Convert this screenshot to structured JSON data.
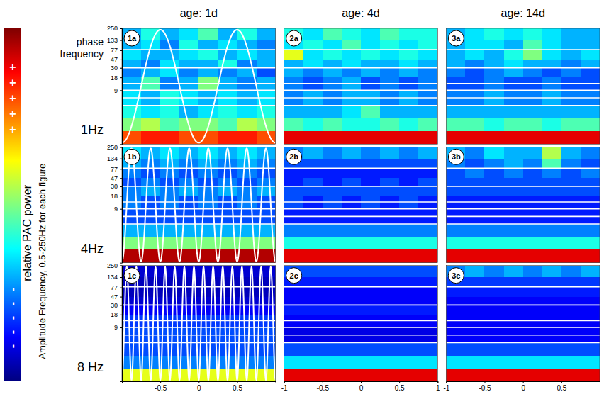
{
  "chart_data": {
    "type": "heatmap",
    "columns": [
      "age: 1d",
      "age: 4d",
      "age: 14d"
    ],
    "rows": [
      "1Hz",
      "4Hz",
      "8 Hz"
    ],
    "phase_frequencies": [
      1,
      4,
      8
    ],
    "phase_label": "phase frequency",
    "y_label": "Amplitude Frequency, 0.5-250Hz for each figure",
    "log": "y",
    "x_edges": [
      -1,
      -0.75,
      -0.5,
      -0.25,
      0,
      0.25,
      0.5,
      0.75,
      1
    ],
    "y_edges": [
      0.5,
      1,
      2,
      4,
      9,
      18,
      30,
      47,
      77,
      133,
      250
    ],
    "band_lines": [
      80,
      30,
      13,
      9,
      6,
      4
    ],
    "colorbar": {
      "label": "relative PAC power",
      "range": [
        0,
        1
      ],
      "colors": [
        "#00007f",
        "#0000ff",
        "#0080ff",
        "#00ffff",
        "#80ff80",
        "#ffff00",
        "#ff8000",
        "#ff0000",
        "#7f0000"
      ],
      "high_marks": [
        "+",
        "+",
        "+",
        "+",
        "+"
      ],
      "low_marks": [
        "-",
        "-",
        "-",
        "-",
        "-"
      ]
    },
    "panels": [
      {
        "title": "1a",
        "xlim": [
          -1,
          1
        ],
        "ylim": [
          0.5,
          250
        ],
        "yticks": [
          250,
          133,
          77,
          47,
          30,
          18,
          9
        ],
        "tick_labels": "y",
        "cells": [
          [
            0.8,
            0.85,
            0.85,
            0.8,
            0.8,
            0.85,
            0.85,
            0.8
          ],
          [
            0.5,
            0.55,
            0.45,
            0.5,
            0.5,
            0.45,
            0.55,
            0.5
          ],
          [
            0.4,
            0.35,
            0.4,
            0.3,
            0.35,
            0.4,
            0.35,
            0.4
          ],
          [
            0.35,
            0.3,
            0.4,
            0.35,
            0.3,
            0.35,
            0.3,
            0.35
          ],
          [
            0.3,
            0.45,
            0.25,
            0.3,
            0.5,
            0.3,
            0.25,
            0.3
          ],
          [
            0.25,
            0.3,
            0.35,
            0.25,
            0.3,
            0.25,
            0.3,
            0.2
          ],
          [
            0.3,
            0.25,
            0.35,
            0.3,
            0.3,
            0.4,
            0.25,
            0.3
          ],
          [
            0.35,
            0.3,
            0.3,
            0.35,
            0.4,
            0.3,
            0.35,
            0.3
          ],
          [
            0.3,
            0.35,
            0.25,
            0.4,
            0.3,
            0.35,
            0.3,
            0.25
          ],
          [
            0.3,
            0.4,
            0.3,
            0.35,
            0.45,
            0.3,
            0.4,
            0.3
          ]
        ]
      },
      {
        "title": "2a",
        "xlim": [
          -1,
          1
        ],
        "ylim": [
          0.5,
          250
        ],
        "tick_labels": false,
        "cells": [
          [
            0.9,
            0.9,
            0.9,
            0.9,
            0.9,
            0.9,
            0.9,
            0.9
          ],
          [
            0.45,
            0.4,
            0.45,
            0.4,
            0.4,
            0.45,
            0.4,
            0.45
          ],
          [
            0.3,
            0.3,
            0.3,
            0.35,
            0.45,
            0.3,
            0.3,
            0.3
          ],
          [
            0.25,
            0.3,
            0.25,
            0.3,
            0.3,
            0.25,
            0.3,
            0.25
          ],
          [
            0.25,
            0.2,
            0.25,
            0.3,
            0.2,
            0.25,
            0.2,
            0.25
          ],
          [
            0.3,
            0.25,
            0.3,
            0.25,
            0.3,
            0.25,
            0.3,
            0.25
          ],
          [
            0.3,
            0.35,
            0.3,
            0.35,
            0.3,
            0.3,
            0.35,
            0.3
          ],
          [
            0.6,
            0.35,
            0.4,
            0.35,
            0.4,
            0.35,
            0.4,
            0.35
          ],
          [
            0.35,
            0.4,
            0.35,
            0.45,
            0.35,
            0.4,
            0.35,
            0.4
          ],
          [
            0.4,
            0.35,
            0.45,
            0.4,
            0.35,
            0.45,
            0.4,
            0.4
          ]
        ]
      },
      {
        "title": "3a",
        "xlim": [
          -1,
          1
        ],
        "ylim": [
          0.5,
          250
        ],
        "tick_labels": false,
        "cells": [
          [
            0.9,
            0.9,
            0.9,
            0.9,
            0.9,
            0.9,
            0.9,
            0.9
          ],
          [
            0.45,
            0.45,
            0.4,
            0.45,
            0.45,
            0.4,
            0.45,
            0.45
          ],
          [
            0.3,
            0.3,
            0.3,
            0.3,
            0.3,
            0.3,
            0.3,
            0.3
          ],
          [
            0.25,
            0.25,
            0.3,
            0.25,
            0.25,
            0.3,
            0.25,
            0.25
          ],
          [
            0.2,
            0.2,
            0.25,
            0.2,
            0.2,
            0.25,
            0.2,
            0.2
          ],
          [
            0.25,
            0.2,
            0.25,
            0.3,
            0.25,
            0.2,
            0.25,
            0.2
          ],
          [
            0.3,
            0.25,
            0.3,
            0.35,
            0.3,
            0.3,
            0.25,
            0.3
          ],
          [
            0.3,
            0.35,
            0.3,
            0.4,
            0.5,
            0.35,
            0.3,
            0.35
          ],
          [
            0.3,
            0.35,
            0.35,
            0.3,
            0.45,
            0.35,
            0.3,
            0.3
          ],
          [
            0.3,
            0.35,
            0.4,
            0.35,
            0.4,
            0.35,
            0.3,
            0.3
          ]
        ]
      },
      {
        "title": "1b",
        "xlim": [
          -1,
          1
        ],
        "ylim": [
          0.5,
          250
        ],
        "yticks": [
          250,
          134,
          77,
          47,
          30,
          18,
          9
        ],
        "tick_labels": "y",
        "cells": [
          [
            0.95,
            0.95,
            0.95,
            0.95,
            0.95,
            0.95,
            0.95,
            0.95
          ],
          [
            0.5,
            0.5,
            0.5,
            0.5,
            0.5,
            0.5,
            0.5,
            0.5
          ],
          [
            0.3,
            0.3,
            0.3,
            0.3,
            0.3,
            0.3,
            0.3,
            0.3
          ],
          [
            0.2,
            0.2,
            0.2,
            0.2,
            0.2,
            0.2,
            0.2,
            0.2
          ],
          [
            0.25,
            0.2,
            0.25,
            0.2,
            0.25,
            0.2,
            0.25,
            0.2
          ],
          [
            0.25,
            0.3,
            0.25,
            0.3,
            0.25,
            0.3,
            0.25,
            0.3
          ],
          [
            0.2,
            0.25,
            0.2,
            0.25,
            0.2,
            0.25,
            0.2,
            0.25
          ],
          [
            0.25,
            0.2,
            0.25,
            0.2,
            0.25,
            0.2,
            0.25,
            0.2
          ],
          [
            0.3,
            0.25,
            0.3,
            0.25,
            0.3,
            0.25,
            0.3,
            0.25
          ],
          [
            0.35,
            0.3,
            0.35,
            0.3,
            0.35,
            0.3,
            0.35,
            0.3
          ]
        ]
      },
      {
        "title": "2b",
        "xlim": [
          -1,
          1
        ],
        "ylim": [
          0.5,
          250
        ],
        "tick_labels": false,
        "cells": [
          [
            0.9,
            0.9,
            0.9,
            0.9,
            0.9,
            0.9,
            0.9,
            0.9
          ],
          [
            0.4,
            0.4,
            0.4,
            0.4,
            0.4,
            0.4,
            0.4,
            0.4
          ],
          [
            0.25,
            0.25,
            0.25,
            0.25,
            0.25,
            0.25,
            0.25,
            0.25
          ],
          [
            0.15,
            0.15,
            0.15,
            0.15,
            0.15,
            0.15,
            0.15,
            0.15
          ],
          [
            0.2,
            0.15,
            0.2,
            0.15,
            0.2,
            0.15,
            0.2,
            0.15
          ],
          [
            0.2,
            0.2,
            0.2,
            0.2,
            0.2,
            0.2,
            0.2,
            0.2
          ],
          [
            0.15,
            0.2,
            0.15,
            0.2,
            0.15,
            0.2,
            0.15,
            0.2
          ],
          [
            0.15,
            0.15,
            0.15,
            0.15,
            0.15,
            0.15,
            0.15,
            0.15
          ],
          [
            0.2,
            0.2,
            0.2,
            0.2,
            0.2,
            0.2,
            0.2,
            0.2
          ],
          [
            0.25,
            0.3,
            0.25,
            0.3,
            0.25,
            0.3,
            0.25,
            0.3
          ]
        ]
      },
      {
        "title": "3b",
        "xlim": [
          -1,
          1
        ],
        "ylim": [
          0.5,
          250
        ],
        "tick_labels": false,
        "cells": [
          [
            0.9,
            0.9,
            0.9,
            0.9,
            0.9,
            0.9,
            0.9,
            0.9
          ],
          [
            0.4,
            0.4,
            0.4,
            0.4,
            0.4,
            0.4,
            0.4,
            0.4
          ],
          [
            0.25,
            0.25,
            0.25,
            0.25,
            0.25,
            0.25,
            0.25,
            0.25
          ],
          [
            0.15,
            0.15,
            0.15,
            0.15,
            0.15,
            0.15,
            0.15,
            0.15
          ],
          [
            0.15,
            0.15,
            0.15,
            0.15,
            0.15,
            0.15,
            0.15,
            0.15
          ],
          [
            0.2,
            0.2,
            0.2,
            0.2,
            0.2,
            0.2,
            0.2,
            0.2
          ],
          [
            0.2,
            0.2,
            0.2,
            0.2,
            0.2,
            0.2,
            0.2,
            0.2
          ],
          [
            0.2,
            0.25,
            0.2,
            0.25,
            0.2,
            0.25,
            0.2,
            0.25
          ],
          [
            0.25,
            0.2,
            0.25,
            0.3,
            0.25,
            0.45,
            0.25,
            0.2
          ],
          [
            0.3,
            0.25,
            0.35,
            0.3,
            0.3,
            0.55,
            0.3,
            0.25
          ]
        ]
      },
      {
        "title": "1c",
        "xlim": [
          -1,
          1
        ],
        "ylim": [
          0.5,
          250
        ],
        "xticks": [
          -0.5,
          0,
          0.5
        ],
        "yticks": [
          250,
          134,
          77,
          47,
          30,
          18,
          9
        ],
        "tick_labels": true,
        "cells": [
          [
            0.6,
            0.6,
            0.6,
            0.6,
            0.6,
            0.6,
            0.6,
            0.6
          ],
          [
            0.25,
            0.25,
            0.25,
            0.25,
            0.25,
            0.25,
            0.25,
            0.25
          ],
          [
            0.2,
            0.2,
            0.2,
            0.2,
            0.2,
            0.2,
            0.2,
            0.2
          ],
          [
            0.2,
            0.2,
            0.2,
            0.2,
            0.2,
            0.2,
            0.2,
            0.2
          ],
          [
            0.18,
            0.18,
            0.18,
            0.18,
            0.18,
            0.18,
            0.18,
            0.18
          ],
          [
            0.12,
            0.12,
            0.12,
            0.12,
            0.12,
            0.12,
            0.12,
            0.12
          ],
          [
            0.08,
            0.08,
            0.08,
            0.08,
            0.08,
            0.08,
            0.08,
            0.08
          ],
          [
            0.06,
            0.06,
            0.06,
            0.06,
            0.06,
            0.06,
            0.06,
            0.06
          ],
          [
            0.06,
            0.06,
            0.06,
            0.06,
            0.06,
            0.06,
            0.06,
            0.06
          ],
          [
            0.08,
            0.08,
            0.08,
            0.08,
            0.08,
            0.08,
            0.08,
            0.08
          ]
        ]
      },
      {
        "title": "2c",
        "xlim": [
          -1,
          1
        ],
        "ylim": [
          0.5,
          250
        ],
        "xticks": [
          -1,
          -0.5,
          0,
          0.5,
          1
        ],
        "tick_labels": "x",
        "cells": [
          [
            0.9,
            0.9,
            0.9,
            0.9,
            0.9,
            0.9,
            0.9,
            0.9
          ],
          [
            0.35,
            0.35,
            0.35,
            0.35,
            0.35,
            0.35,
            0.35,
            0.35
          ],
          [
            0.2,
            0.2,
            0.2,
            0.2,
            0.2,
            0.2,
            0.2,
            0.2
          ],
          [
            0.1,
            0.1,
            0.1,
            0.1,
            0.1,
            0.1,
            0.1,
            0.1
          ],
          [
            0.12,
            0.12,
            0.12,
            0.12,
            0.12,
            0.12,
            0.12,
            0.12
          ],
          [
            0.15,
            0.15,
            0.15,
            0.15,
            0.15,
            0.15,
            0.15,
            0.15
          ],
          [
            0.12,
            0.12,
            0.12,
            0.12,
            0.12,
            0.12,
            0.12,
            0.12
          ],
          [
            0.12,
            0.12,
            0.12,
            0.12,
            0.12,
            0.12,
            0.12,
            0.12
          ],
          [
            0.15,
            0.15,
            0.15,
            0.15,
            0.15,
            0.15,
            0.15,
            0.15
          ],
          [
            0.2,
            0.2,
            0.2,
            0.2,
            0.2,
            0.2,
            0.2,
            0.2
          ]
        ]
      },
      {
        "title": "3c",
        "xlim": [
          -1,
          1
        ],
        "ylim": [
          0.5,
          250
        ],
        "xticks": [
          -1,
          -0.5,
          0,
          0.5
        ],
        "tick_labels": "x",
        "cells": [
          [
            0.9,
            0.9,
            0.9,
            0.9,
            0.9,
            0.9,
            0.9,
            0.9
          ],
          [
            0.35,
            0.35,
            0.35,
            0.35,
            0.35,
            0.35,
            0.35,
            0.35
          ],
          [
            0.2,
            0.2,
            0.2,
            0.2,
            0.2,
            0.2,
            0.2,
            0.2
          ],
          [
            0.12,
            0.12,
            0.12,
            0.12,
            0.12,
            0.12,
            0.12,
            0.12
          ],
          [
            0.12,
            0.12,
            0.12,
            0.12,
            0.12,
            0.12,
            0.12,
            0.12
          ],
          [
            0.12,
            0.12,
            0.12,
            0.12,
            0.12,
            0.12,
            0.12,
            0.12
          ],
          [
            0.12,
            0.12,
            0.12,
            0.12,
            0.12,
            0.12,
            0.12,
            0.12
          ],
          [
            0.15,
            0.15,
            0.15,
            0.15,
            0.15,
            0.15,
            0.15,
            0.15
          ],
          [
            0.18,
            0.18,
            0.18,
            0.18,
            0.18,
            0.18,
            0.18,
            0.18
          ],
          [
            0.25,
            0.3,
            0.25,
            0.3,
            0.25,
            0.3,
            0.25,
            0.3
          ]
        ]
      }
    ]
  }
}
